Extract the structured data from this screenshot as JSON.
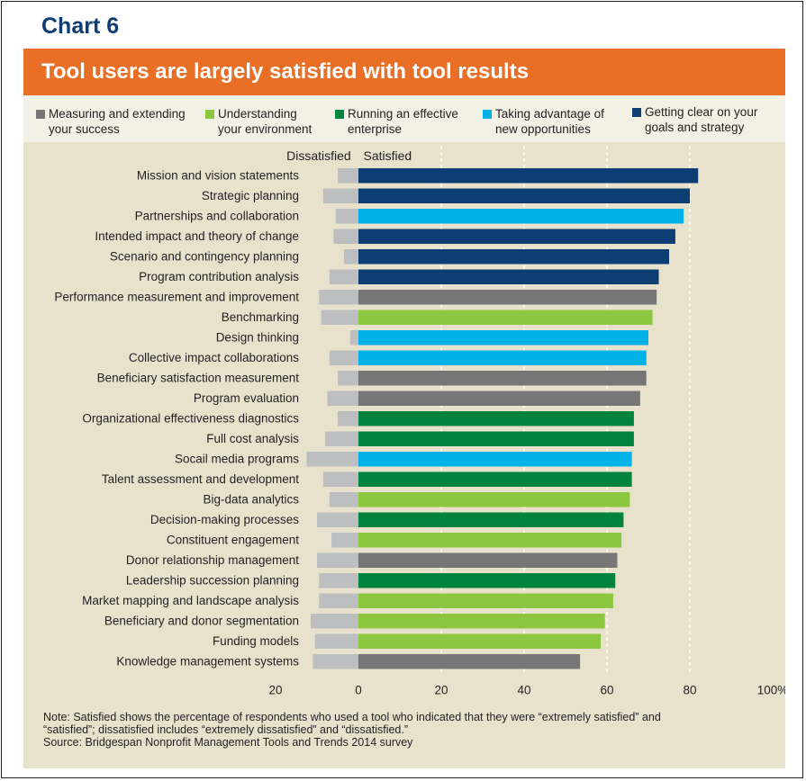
{
  "chart_number": "Chart 6",
  "banner_title": "Tool users are largely satisfied with tool results",
  "legend": [
    {
      "label": "Measuring and extending\nyour success",
      "color": "#767676"
    },
    {
      "label": "Understanding\nyour environment",
      "color": "#8dc63f"
    },
    {
      "label": "Running an effective\nenterprise",
      "color": "#00843d"
    },
    {
      "label": "Taking advantage of\nnew opportunities",
      "color": "#00b2e8"
    },
    {
      "label": "Getting clear on your\ngoals and strategy",
      "color": "#0c3e74"
    }
  ],
  "notes": {
    "line1": "Note: Satisfied shows the percentage of respondents who used a tool who indicated that they were “extremely satisfied” and",
    "line2": "“satisfied”; dissatisfied includes “extremely dissatisfied” and “dissatisfied.”",
    "line3": "Source: Bridgespan Nonprofit Management Tools and Trends 2014 survey"
  },
  "chart_data": {
    "type": "bar",
    "orientation": "horizontal-diverging",
    "header_left": "Dissatisfied",
    "header_right": "Satisfied",
    "dissatisfied_color": "#bcbec0",
    "xlim": [
      -20,
      100
    ],
    "x_ticks": [
      {
        "value": -20,
        "label": "20"
      },
      {
        "value": 0,
        "label": "0"
      },
      {
        "value": 20,
        "label": "20"
      },
      {
        "value": 40,
        "label": "40"
      },
      {
        "value": 60,
        "label": "60"
      },
      {
        "value": 80,
        "label": "80"
      },
      {
        "value": 100,
        "label": "100%"
      }
    ],
    "gridlines": [
      20,
      40,
      60,
      80
    ],
    "categories": [
      "Mission and vision statements",
      "Strategic planning",
      "Partnerships and collaboration",
      "Intended impact and theory of change",
      "Scenario and contingency planning",
      "Program contribution analysis",
      "Performance measurement and improvement",
      "Benchmarking",
      "Design thinking",
      "Collective impact collaborations",
      "Beneficiary satisfaction measurement",
      "Program evaluation",
      "Organizational effectiveness diagnostics",
      "Full cost analysis",
      "Socail media programs",
      "Talent assessment and development",
      "Big-data analytics",
      "Decision-making processes",
      "Constituent engagement",
      "Donor relationship management",
      "Leadership succession planning",
      "Market mapping and landscape analysis",
      "Beneficiary and donor segmentation",
      "Funding models",
      "Knowledge management systems"
    ],
    "satisfied": [
      82,
      80,
      78.5,
      76.5,
      75,
      72.5,
      72,
      71,
      70,
      69.5,
      69.5,
      68,
      66.5,
      66.5,
      66,
      66,
      65.5,
      64,
      63.5,
      62.5,
      62,
      61.5,
      59.5,
      58.5,
      53.5
    ],
    "dissatisfied": [
      5,
      8.5,
      5.5,
      6,
      3.5,
      7,
      9.5,
      9,
      2,
      7,
      5,
      7.5,
      5,
      8,
      12.5,
      8.5,
      7,
      10,
      6.5,
      10,
      9.5,
      9.5,
      11.5,
      10.5,
      11
    ],
    "series_group": [
      4,
      4,
      3,
      4,
      4,
      4,
      0,
      1,
      3,
      3,
      0,
      0,
      2,
      2,
      3,
      2,
      1,
      2,
      1,
      0,
      2,
      1,
      1,
      1,
      0
    ]
  }
}
